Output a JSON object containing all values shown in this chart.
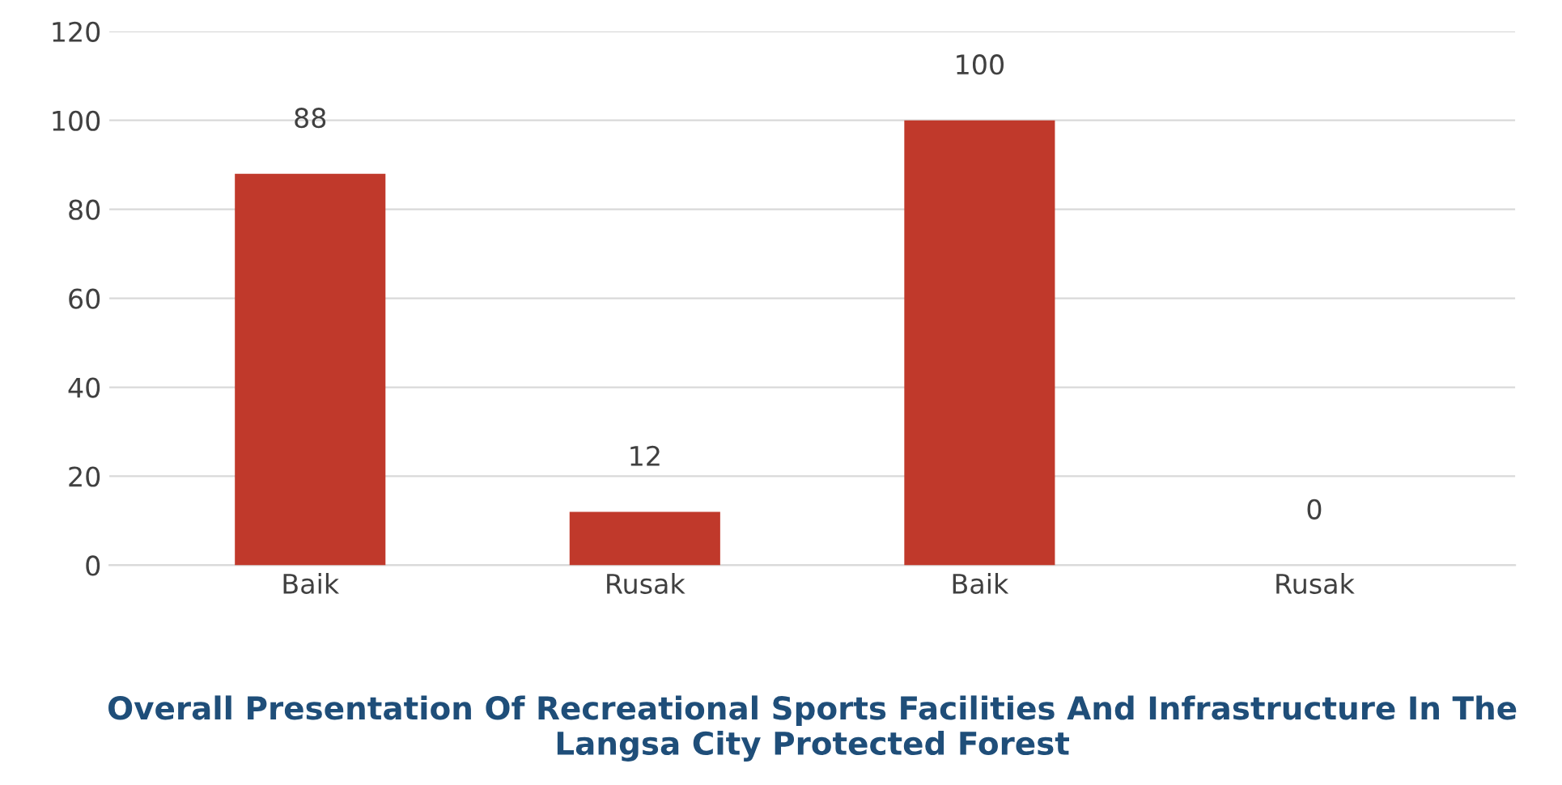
{
  "chart_data": {
    "type": "bar",
    "title": "Overall Presentation Of Recreational Sports Facilities And Infrastructure In The Langsa City Protected Forest",
    "categories": [
      "Baik",
      "Rusak",
      "Baik",
      "Rusak"
    ],
    "values": [
      88,
      12,
      100,
      0
    ],
    "color": "#c0392b",
    "ylim": [
      0,
      120
    ],
    "yticks": [
      0,
      20,
      40,
      60,
      80,
      100,
      120
    ],
    "grid": "y",
    "data_labels": true
  }
}
